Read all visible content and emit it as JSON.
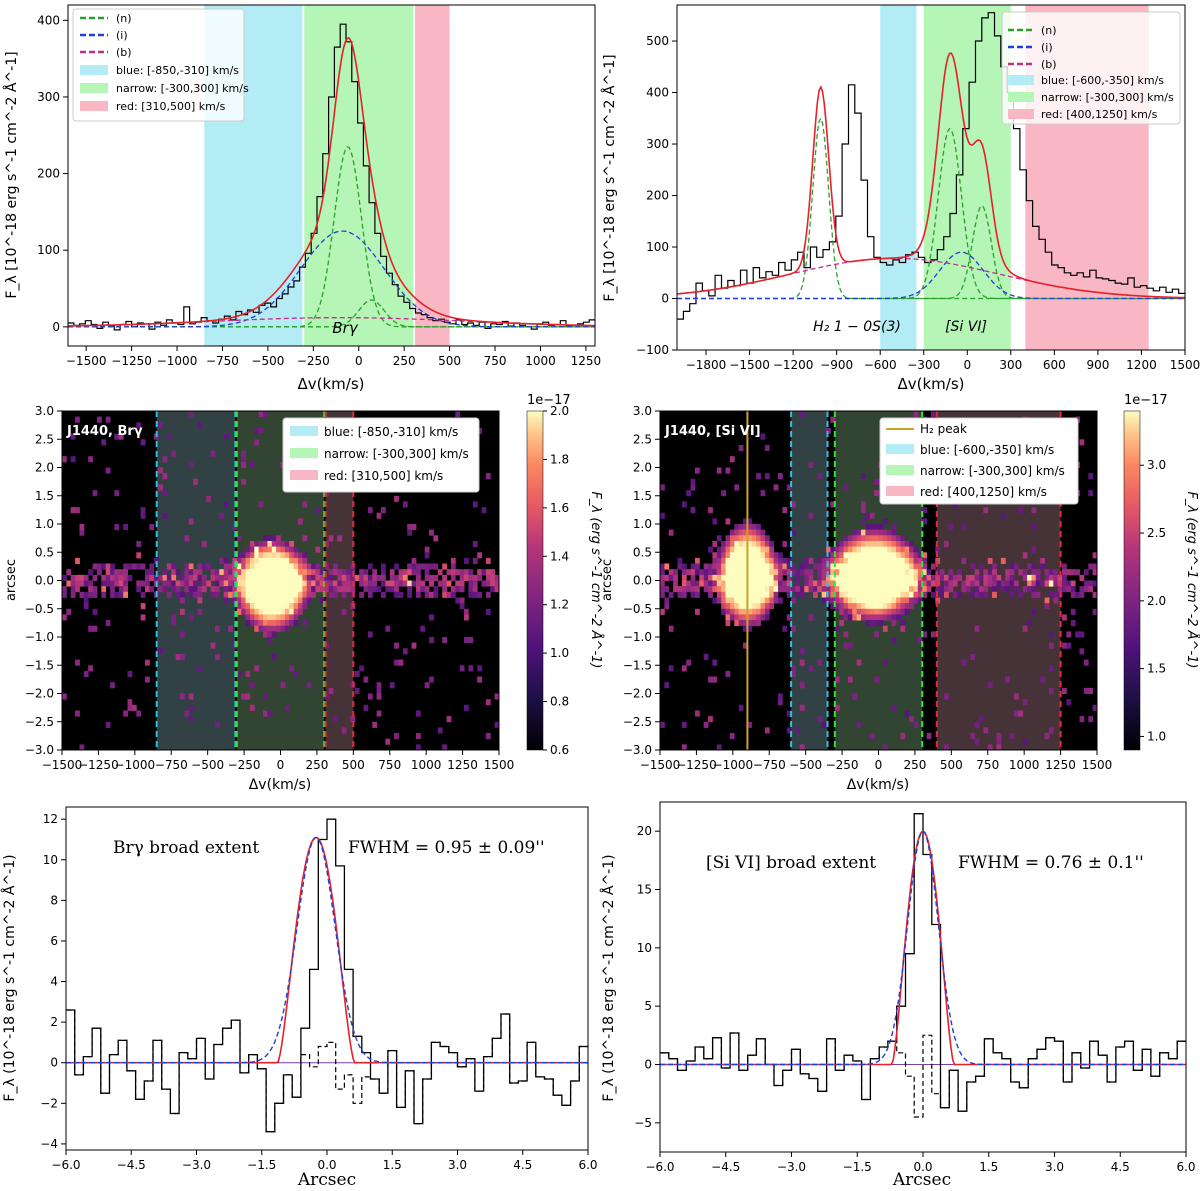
{
  "figure": {
    "panel_tl": {
      "xlabel": "Δv(km/s)",
      "ylabel": "F_λ [10^-18 erg s^-1 cm^-2 Å^-1]",
      "line_label": "Brγ",
      "legend": [
        "(n)",
        "(i)",
        "(b)",
        "blue: [-850,-310] km/s",
        "narrow: [-300,300] km/s",
        "red: [310,500] km/s"
      ]
    },
    "panel_tr": {
      "xlabel": "Δv(km/s)",
      "ylabel": "F_λ [10^-18 erg s^-1 cm^-2 Å^-1]",
      "line_label_1": "H₂ 1 − 0S(3)",
      "line_label_2": "[Si VI]",
      "legend": [
        "(n)",
        "(i)",
        "(b)",
        "blue: [-600,-350] km/s",
        "narrow: [-300,300] km/s",
        "red: [400,1250] km/s"
      ]
    },
    "panel_ml": {
      "title": "J1440, Brγ",
      "xlabel": "Δv(km/s)",
      "ylabel": "arcsec",
      "cbar_label": "F_λ (erg s^-1 cm^-2 Å^-1)",
      "cbar_exp": "1e−17",
      "legend": [
        "blue: [-850,-310] km/s",
        "narrow: [-300,300] km/s",
        "red: [310,500] km/s"
      ]
    },
    "panel_mr": {
      "title": "J1440, [Si VI]",
      "xlabel": "Δv(km/s)",
      "ylabel": "arcsec",
      "cbar_label": "F_λ (erg s^-1 cm^-2 Å^-1)",
      "cbar_exp": "1e−17",
      "legend": [
        "H₂ peak",
        "blue: [-600,-350] km/s",
        "narrow: [-300,300] km/s",
        "red: [400,1250] km/s"
      ]
    },
    "panel_bl": {
      "xlabel": "Arcsec",
      "ylabel": "F_λ (10^-18 erg s^-1 cm^-2 Å^-1)",
      "annot_left": "Brγ broad extent",
      "annot_right": "FWHM = 0.95 ± 0.09''"
    },
    "panel_br": {
      "xlabel": "Arcsec",
      "ylabel": "F_λ (10^-18 erg s^-1 cm^-2 Å^-1)",
      "annot_left": "[Si VI] broad extent",
      "annot_right": "FWHM = 0.76 ± 0.1''"
    }
  },
  "colors": {
    "blue_region": "#b3ecf5",
    "narrow_region": "#b5f5b5",
    "red_region": "#f9b7c4",
    "narrow_comp": "#2ca02c",
    "inter_comp": "#1f3fd6",
    "broad_comp": "#c0308a",
    "total_fit": "#e8202a",
    "h2_peak": "#c9a227"
  },
  "chart_data": [
    {
      "id": "panel_tl",
      "type": "line",
      "xlim": [
        -1600,
        1300
      ],
      "ylim": [
        -25,
        420
      ],
      "xticks": [
        -1500,
        -1250,
        -1000,
        -750,
        -500,
        -250,
        0,
        250,
        500,
        750,
        1000,
        1250
      ],
      "yticks": [
        0,
        100,
        200,
        300,
        400
      ],
      "regions": [
        {
          "name": "blue",
          "x": [
            -850,
            -310
          ]
        },
        {
          "name": "narrow",
          "x": [
            -300,
            300
          ]
        },
        {
          "name": "red",
          "x": [
            310,
            500
          ]
        }
      ],
      "components": [
        {
          "name": "(n)",
          "amp": 235,
          "center": -60,
          "sigma": 75
        },
        {
          "name": "(n)",
          "amp": 35,
          "center": 70,
          "sigma": 70
        },
        {
          "name": "(i)",
          "amp": 125,
          "center": -90,
          "sigma": 230
        },
        {
          "name": "(b)",
          "amp": 12,
          "center": -100,
          "sigma": 700
        }
      ],
      "data_y": [
        5,
        2,
        4,
        8,
        3,
        -2,
        6,
        1,
        -4,
        3,
        7,
        0,
        5,
        4,
        -3,
        6,
        2,
        9,
        5,
        3,
        26,
        4,
        6,
        12,
        8,
        5,
        10,
        14,
        9,
        20,
        16,
        22,
        19,
        28,
        31,
        26,
        37,
        43,
        52,
        60,
        78,
        96,
        122,
        170,
        226,
        300,
        365,
        395,
        372,
        320,
        266,
        210,
        162,
        122,
        92,
        70,
        55,
        40,
        32,
        24,
        18,
        16,
        12,
        8,
        10,
        6,
        4,
        9,
        3,
        5,
        2,
        6,
        -2,
        4,
        3,
        7,
        1,
        5,
        2,
        0,
        -3,
        4,
        6,
        2,
        3,
        8,
        1,
        2,
        4,
        6,
        9
      ]
    },
    {
      "id": "panel_tr",
      "type": "line",
      "xlim": [
        -2000,
        1500
      ],
      "ylim": [
        -100,
        570
      ],
      "xticks": [
        -1800,
        -1500,
        -1200,
        -900,
        -600,
        -300,
        0,
        300,
        600,
        900,
        1200,
        1500
      ],
      "yticks": [
        -100,
        0,
        100,
        200,
        300,
        400,
        500
      ],
      "regions": [
        {
          "name": "blue",
          "x": [
            -600,
            -350
          ]
        },
        {
          "name": "narrow",
          "x": [
            -300,
            300
          ]
        },
        {
          "name": "red",
          "x": [
            400,
            1250
          ]
        }
      ],
      "components": [
        {
          "name": "(n)",
          "amp": 350,
          "center": -1010,
          "sigma": 55
        },
        {
          "name": "(n)",
          "amp": 330,
          "center": -120,
          "sigma": 80
        },
        {
          "name": "(n)",
          "amp": 180,
          "center": 100,
          "sigma": 65
        },
        {
          "name": "(i)",
          "amp": 90,
          "center": -40,
          "sigma": 150
        },
        {
          "name": "(b)",
          "amp": 78,
          "center": -500,
          "sigma": 720
        }
      ],
      "data_y": [
        -40,
        -25,
        -10,
        30,
        15,
        5,
        45,
        20,
        35,
        25,
        55,
        30,
        60,
        40,
        52,
        45,
        70,
        55,
        75,
        90,
        60,
        100,
        80,
        95,
        110,
        160,
        300,
        415,
        360,
        230,
        120,
        80,
        70,
        65,
        75,
        70,
        85,
        90,
        80,
        70,
        75,
        95,
        120,
        165,
        240,
        330,
        420,
        500,
        545,
        555,
        510,
        450,
        400,
        330,
        250,
        190,
        140,
        115,
        90,
        65,
        60,
        50,
        45,
        50,
        42,
        55,
        40,
        38,
        35,
        30,
        28,
        40,
        22,
        25,
        20,
        15,
        22,
        12,
        18,
        10
      ]
    },
    {
      "id": "panel_ml",
      "type": "heatmap",
      "xlim": [
        -1500,
        1500
      ],
      "ylim": [
        -3.0,
        3.0
      ],
      "xticks": [
        -1500,
        -1250,
        -1000,
        -750,
        -500,
        -250,
        0,
        250,
        500,
        750,
        1000,
        1250,
        1500
      ],
      "yticks": [
        -3.0,
        -2.5,
        -2.0,
        -1.5,
        -1.0,
        -0.5,
        0.0,
        0.5,
        1.0,
        1.5,
        2.0,
        2.5,
        3.0
      ],
      "regions": [
        {
          "name": "blue",
          "x": [
            -850,
            -310
          ]
        },
        {
          "name": "narrow",
          "x": [
            -300,
            300
          ]
        },
        {
          "name": "red",
          "x": [
            310,
            500
          ]
        }
      ],
      "blob": {
        "center_v": -60,
        "center_y": -0.1,
        "sigma_v": 130,
        "sigma_y": 0.45
      },
      "cbar": {
        "min": 0.6,
        "max": 2.0,
        "ticks": [
          0.6,
          0.8,
          1.0,
          1.2,
          1.4,
          1.6,
          1.8,
          2.0
        ]
      }
    },
    {
      "id": "panel_mr",
      "type": "heatmap",
      "xlim": [
        -1500,
        1500
      ],
      "ylim": [
        -3.0,
        3.0
      ],
      "xticks": [
        -1500,
        -1250,
        -1000,
        -750,
        -500,
        -250,
        0,
        250,
        500,
        750,
        1000,
        1250,
        1500
      ],
      "yticks": [
        -3.0,
        -2.5,
        -2.0,
        -1.5,
        -1.0,
        -0.5,
        0.0,
        0.5,
        1.0,
        1.5,
        2.0,
        2.5,
        3.0
      ],
      "h2_peak": -900,
      "regions": [
        {
          "name": "blue",
          "x": [
            -600,
            -350
          ]
        },
        {
          "name": "narrow",
          "x": [
            -300,
            300
          ]
        },
        {
          "name": "red",
          "x": [
            400,
            1250
          ]
        }
      ],
      "blobs": [
        {
          "center_v": -900,
          "center_y": 0.1,
          "sigma_v": 110,
          "sigma_y": 0.5
        },
        {
          "center_v": -30,
          "center_y": 0.1,
          "sigma_v": 170,
          "sigma_y": 0.45
        }
      ],
      "cbar": {
        "min": 0.9,
        "max": 3.4,
        "ticks": [
          1.0,
          1.5,
          2.0,
          2.5,
          3.0
        ]
      }
    },
    {
      "id": "panel_bl",
      "type": "line",
      "xlim": [
        -6.0,
        6.0
      ],
      "ylim": [
        -4.3,
        12.6
      ],
      "xticks": [
        -6.0,
        -4.5,
        -3.0,
        -1.5,
        0.0,
        1.5,
        3.0,
        4.5,
        6.0
      ],
      "yticks": [
        -4,
        -2,
        0,
        2,
        4,
        6,
        8,
        10,
        12
      ],
      "fwhm": 0.95,
      "peak": 11.1,
      "center": -0.25,
      "data_y": [
        2.6,
        -0.6,
        0.3,
        1.7,
        -1.5,
        0.4,
        1.1,
        -0.4,
        -1.8,
        -0.9,
        1.1,
        -1.3,
        -2.5,
        0.5,
        0.2,
        1.2,
        -0.8,
        0.9,
        1.7,
        2.1,
        -0.5,
        0.4,
        -0.3,
        -3.4,
        -2.0,
        -0.6,
        -1.7,
        1.7,
        4.6,
        11.0,
        12.0,
        9.7,
        4.6,
        1.3,
        0.5,
        -0.8,
        -1.5,
        0.6,
        -2.2,
        -0.4,
        -3.0,
        -0.8,
        1.0,
        0.8,
        0.5,
        -0.2,
        0.2,
        -1.4,
        0.3,
        1.2,
        2.4,
        -1.0,
        -0.9,
        1.0,
        -0.7,
        -0.8,
        -1.6,
        -2.1,
        -0.9,
        0.8
      ],
      "dash_y": [
        2.6,
        -0.6,
        0.3,
        1.7,
        -1.5,
        0.4,
        1.1,
        -0.4,
        -1.8,
        -0.9,
        1.1,
        -1.3,
        -2.5,
        0.5,
        0.2,
        1.2,
        -0.8,
        0.9,
        1.7,
        2.1,
        -0.5,
        0.4,
        -0.3,
        -3.4,
        -2.0,
        -0.6,
        -1.7,
        0.4,
        -0.2,
        0.8,
        1.0,
        -1.3,
        -0.6,
        -2.0,
        -0.7,
        -0.8,
        -1.5,
        0.6,
        -2.2,
        -0.4,
        -3.0,
        -0.8,
        1.0,
        0.8,
        0.5,
        -0.2,
        0.2,
        -1.4,
        0.3,
        1.2,
        2.4,
        -1.0,
        -0.9,
        1.0,
        -0.7,
        -0.8,
        -1.6,
        -2.1,
        -0.9,
        0.8
      ]
    },
    {
      "id": "panel_br",
      "type": "line",
      "xlim": [
        -6.0,
        6.0
      ],
      "ylim": [
        -7.5,
        22.5
      ],
      "xticks": [
        -6.0,
        -4.5,
        -3.0,
        -1.5,
        0.0,
        1.5,
        3.0,
        4.5,
        6.0
      ],
      "yticks": [
        -5,
        0,
        5,
        10,
        15,
        20
      ],
      "fwhm": 0.76,
      "peak": 20.0,
      "center": 0.0,
      "data_y": [
        1.0,
        0.5,
        -0.5,
        0.3,
        1.5,
        0.5,
        2.3,
        -0.3,
        2.7,
        -0.5,
        0.8,
        2.2,
        0.0,
        -1.8,
        -0.5,
        1.3,
        -0.8,
        -1.2,
        -2.3,
        2.2,
        -0.5,
        0.8,
        0.3,
        -3.0,
        0.5,
        1.5,
        2.0,
        5.0,
        9.5,
        21.5,
        18.0,
        12.0,
        -3.7,
        -0.5,
        -4.0,
        -1.5,
        -1.0,
        2.2,
        1.0,
        0.5,
        -1.5,
        -2.0,
        0.5,
        1.3,
        2.3,
        2.0,
        -1.5,
        1.0,
        -0.3,
        2.0,
        0.8,
        -1.5,
        1.5,
        2.0,
        -0.5,
        1.3,
        -1.0,
        1.0,
        0.5,
        2.0
      ],
      "dash_y": [
        1.0,
        0.5,
        -0.5,
        0.3,
        1.5,
        0.5,
        2.3,
        -0.3,
        2.7,
        -0.5,
        0.8,
        2.2,
        0.0,
        -1.8,
        -0.5,
        1.3,
        -0.8,
        -1.2,
        -2.3,
        2.2,
        -0.5,
        0.8,
        0.3,
        -3.0,
        0.5,
        1.5,
        2.0,
        1.0,
        -1.0,
        -4.5,
        2.5,
        -2.5,
        -3.7,
        -0.5,
        -4.0,
        -1.5,
        -1.0,
        2.2,
        1.0,
        0.5,
        -1.5,
        -2.0,
        0.5,
        1.3,
        2.3,
        2.0,
        -1.5,
        1.0,
        -0.3,
        2.0,
        0.8,
        -1.5,
        1.5,
        2.0,
        -0.5,
        1.3,
        -1.0,
        1.0,
        0.5,
        2.0
      ]
    }
  ]
}
